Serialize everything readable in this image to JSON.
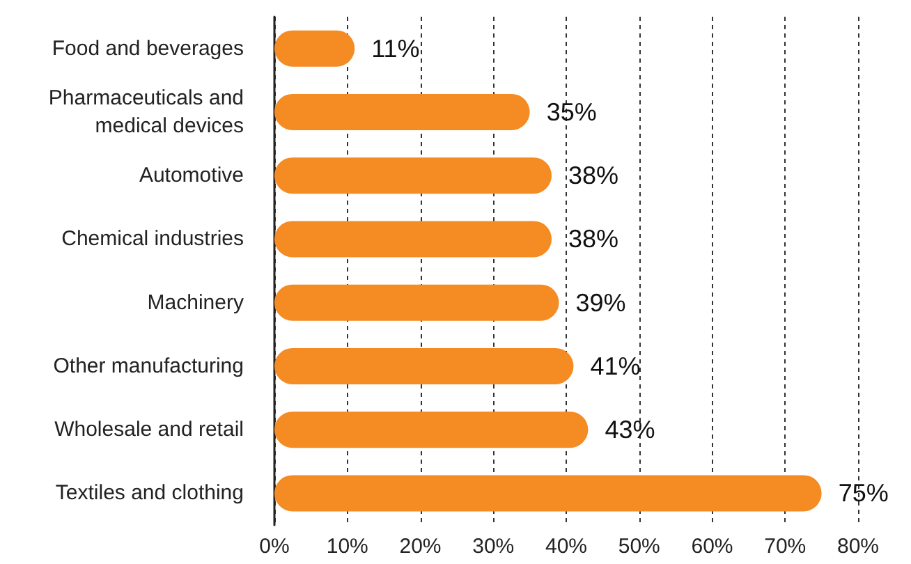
{
  "chart_data": {
    "type": "bar",
    "orientation": "horizontal",
    "categories": [
      "Food and beverages",
      "Pharmaceuticals and\nmedical devices",
      "Automotive",
      "Chemical industries",
      "Machinery",
      "Other manufacturing",
      "Wholesale and retail",
      "Textiles and clothing"
    ],
    "values": [
      11,
      35,
      38,
      38,
      39,
      41,
      43,
      75
    ],
    "value_labels": [
      "11%",
      "35%",
      "38%",
      "38%",
      "39%",
      "41%",
      "43%",
      "75%"
    ],
    "color": "#f58b23",
    "xlim": [
      0,
      80
    ],
    "xticks": [
      {
        "value": 0,
        "label": "0%"
      },
      {
        "value": 10,
        "label": "10%"
      },
      {
        "value": 20,
        "label": "20%"
      },
      {
        "value": 30,
        "label": "30%"
      },
      {
        "value": 40,
        "label": "40%"
      },
      {
        "value": 50,
        "label": "50%"
      },
      {
        "value": 60,
        "label": "60%"
      },
      {
        "value": 70,
        "label": "70%"
      },
      {
        "value": 80,
        "label": "80%"
      }
    ],
    "grid": "x"
  }
}
